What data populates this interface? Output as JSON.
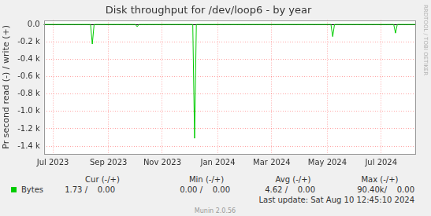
{
  "chart_data": {
    "type": "line",
    "title": "Disk throughput for /dev/loop6 - by year",
    "y_label": "Pr second read (-) / write (+)",
    "categories": [
      null,
      null,
      null,
      null,
      null,
      "Jul 2023",
      null,
      null,
      null,
      null,
      null,
      null,
      null,
      null,
      null,
      null,
      null,
      null,
      null,
      null,
      null,
      null,
      null,
      null,
      null,
      null,
      null,
      null,
      null,
      null,
      null,
      null,
      null,
      null,
      null,
      null,
      "Sep 2023",
      null,
      null,
      null,
      null,
      null,
      null,
      null,
      null,
      null,
      null,
      null,
      null,
      null,
      null,
      null,
      null,
      null,
      null,
      null,
      null,
      null,
      null,
      null,
      null,
      null,
      null,
      null,
      null,
      null,
      "Nov 2023",
      null,
      null,
      null,
      null,
      null,
      null,
      null,
      null,
      null,
      null,
      null,
      null,
      null,
      null,
      null,
      null,
      null,
      null,
      null,
      null,
      null,
      null,
      null,
      null,
      null,
      null,
      null,
      null,
      null,
      null,
      "Jan 2024",
      null,
      null,
      null,
      null,
      null,
      null,
      null,
      null,
      null,
      null,
      null,
      null,
      null,
      null,
      null,
      null,
      null,
      null,
      null,
      null,
      null,
      null,
      null,
      null,
      null,
      null,
      null,
      null,
      null,
      "Mar 2024",
      null,
      null,
      null,
      null,
      null,
      null,
      null,
      null,
      null,
      null,
      null,
      null,
      null,
      null,
      null,
      null,
      null,
      null,
      null,
      null,
      null,
      null,
      null,
      null,
      null,
      null,
      null,
      null,
      null,
      null,
      "May 2024",
      null,
      null,
      null,
      null,
      null,
      null,
      null,
      null,
      null,
      null,
      null,
      null,
      null,
      null,
      null,
      null,
      null,
      null,
      null,
      null,
      null,
      null,
      null,
      null,
      null,
      null,
      null,
      null,
      null,
      "Jul 2024",
      null,
      null,
      null,
      null,
      null,
      null,
      null,
      null,
      null,
      null,
      null,
      null,
      null,
      null,
      null,
      null,
      null,
      null,
      null
    ],
    "series": [
      {
        "name": "Bytes",
        "color": "#00cc00",
        "values": [
          0,
          0,
          0,
          0,
          0,
          0,
          0,
          0,
          0,
          0,
          0,
          0,
          0,
          0,
          0,
          0,
          0,
          0,
          0,
          0,
          0,
          0,
          0,
          0,
          0,
          0,
          0,
          -225,
          0,
          0,
          0,
          0,
          0,
          0,
          0,
          0,
          0,
          0,
          0,
          0,
          0,
          0,
          0,
          0,
          0,
          0,
          0,
          0,
          0,
          0,
          0,
          0,
          -25,
          0,
          0,
          0,
          0,
          0,
          0,
          0,
          0,
          0,
          0,
          0,
          0,
          0,
          0,
          0,
          0,
          0,
          0,
          0,
          0,
          0,
          0,
          0,
          0,
          0,
          0,
          0,
          0,
          0,
          0,
          0,
          -1310,
          0,
          0,
          0,
          0,
          0,
          0,
          0,
          0,
          0,
          0,
          0,
          0,
          0,
          0,
          0,
          0,
          0,
          0,
          0,
          0,
          0,
          0,
          0,
          0,
          0,
          0,
          0,
          0,
          0,
          0,
          0,
          0,
          0,
          0,
          0,
          0,
          0,
          0,
          0,
          0,
          0,
          0,
          0,
          0,
          0,
          0,
          0,
          0,
          0,
          0,
          0,
          0,
          0,
          0,
          0,
          0,
          0,
          0,
          0,
          0,
          0,
          0,
          0,
          0,
          0,
          0,
          0,
          0,
          0,
          0,
          0,
          0,
          0,
          0,
          0,
          0,
          -140,
          0,
          0,
          0,
          0,
          0,
          0,
          0,
          0,
          0,
          0,
          0,
          0,
          0,
          0,
          0,
          0,
          0,
          0,
          0,
          0,
          0,
          0,
          0,
          0,
          0,
          0,
          0,
          0,
          0,
          0,
          0,
          0,
          0,
          0,
          -100,
          0,
          0,
          0,
          0,
          0,
          0,
          0,
          0,
          0,
          0,
          0
        ],
        "summary": [
          "1.73 /    0.00",
          "0.00 /    0.00",
          "4.62 /    0.00",
          "90.40k/    0.00"
        ]
      }
    ],
    "summary_headers": [
      "Cur (-/+)",
      "Min (-/+)",
      "Avg (-/+)",
      "Max (-/+)"
    ],
    "last_update": "Last update: Sat Aug 10 12:45:10 2024",
    "footer": "Munin 2.0.56",
    "watermark": "RRDTOOL / TOBI OETIKER",
    "ylim": [
      -1490,
      50
    ],
    "yticks": [
      {
        "value": -1400,
        "label": "-1.4 k"
      },
      {
        "value": -1200,
        "label": "-1.2 k"
      },
      {
        "value": -1000,
        "label": "-1.0 k"
      },
      {
        "value": -800,
        "label": "-0.8 k"
      },
      {
        "value": -600,
        "label": "-0.6 k"
      },
      {
        "value": -400,
        "label": "-0.4 k"
      },
      {
        "value": -200,
        "label": "-0.2 k"
      },
      {
        "value": 0,
        "label": "0.0"
      }
    ],
    "grid": true,
    "legend": "bottom"
  }
}
